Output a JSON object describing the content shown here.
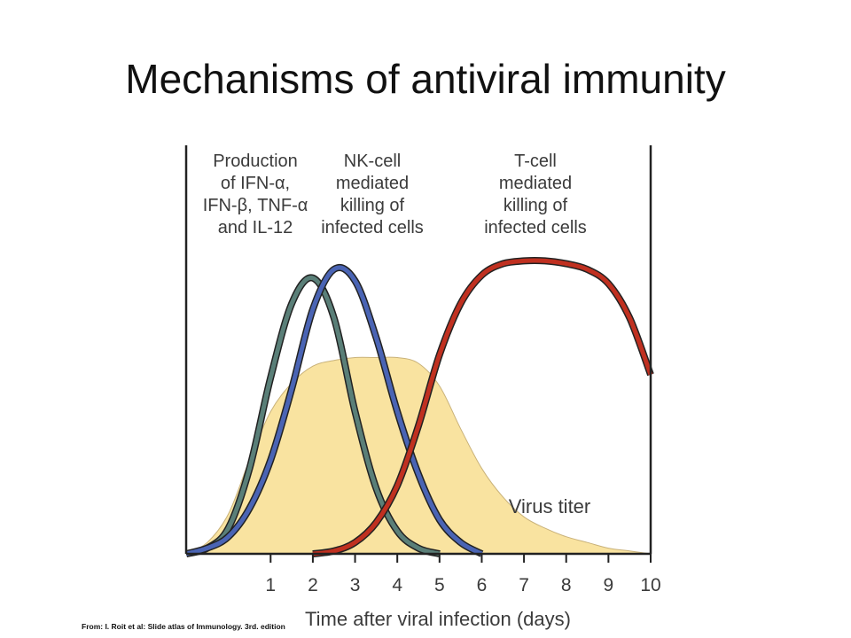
{
  "title": "Mechanisms of antiviral immunity",
  "source_note": "From: I. Roit et al: Slide atlas of Immunology. 3rd. edition",
  "chart_data": {
    "type": "area",
    "xlabel": "Time after viral infection (days)",
    "ylabel": "",
    "xlim": [
      -1,
      10
    ],
    "ylim": [
      0,
      1.05
    ],
    "x_ticks": [
      1,
      2,
      3,
      4,
      5,
      6,
      7,
      8,
      9,
      10
    ],
    "grid": false,
    "colors": {
      "virus_fill": "#f9e3a0",
      "virus_edge": "#c9b27a",
      "ifn": "#5a7f78",
      "nk": "#4a64b4",
      "tcell": "#c03020",
      "curve_outline": "#222222",
      "axis": "#222222"
    },
    "annotations": [
      {
        "lines": [
          "Production",
          "of IFN-α,",
          "IFN-β, TNF-α",
          "and IL-12"
        ]
      },
      {
        "lines": [
          "NK-cell",
          "mediated",
          "killing of",
          "infected cells"
        ]
      },
      {
        "lines": [
          "T-cell",
          "mediated",
          "killing of",
          "infected cells"
        ]
      },
      {
        "lines": [
          "Virus titer"
        ]
      }
    ],
    "series": [
      {
        "name": "Virus titer",
        "kind": "area",
        "x": [
          -1,
          -0.5,
          0,
          0.5,
          1,
          1.5,
          2,
          2.5,
          3,
          3.5,
          4,
          4.5,
          5,
          5.5,
          6,
          6.5,
          7,
          7.5,
          8,
          8.5,
          9,
          9.5,
          10
        ],
        "y": [
          0,
          0.04,
          0.14,
          0.33,
          0.5,
          0.6,
          0.66,
          0.68,
          0.69,
          0.69,
          0.69,
          0.67,
          0.59,
          0.44,
          0.3,
          0.2,
          0.13,
          0.09,
          0.06,
          0.04,
          0.02,
          0.01,
          0
        ]
      },
      {
        "name": "Production of IFN-α, IFN-β, TNF-α and IL-12",
        "kind": "line",
        "x": [
          -1,
          -0.5,
          0,
          0.5,
          1,
          1.5,
          2,
          2.5,
          3,
          3.5,
          4,
          4.5,
          5
        ],
        "y": [
          0,
          0.02,
          0.09,
          0.3,
          0.62,
          0.88,
          0.97,
          0.83,
          0.5,
          0.23,
          0.08,
          0.02,
          0
        ]
      },
      {
        "name": "NK-cell mediated killing of infected cells",
        "kind": "line",
        "x": [
          -1,
          -0.5,
          0,
          0.5,
          1,
          1.5,
          2,
          2.5,
          3,
          3.5,
          4,
          4.5,
          5,
          5.5,
          6
        ],
        "y": [
          0,
          0.02,
          0.06,
          0.16,
          0.33,
          0.58,
          0.86,
          1.0,
          0.96,
          0.76,
          0.5,
          0.28,
          0.12,
          0.04,
          0
        ]
      },
      {
        "name": "T-cell mediated killing of infected cells",
        "kind": "line",
        "x": [
          2,
          2.5,
          3,
          3.5,
          4,
          4.5,
          5,
          5.5,
          6,
          6.5,
          7,
          7.5,
          8,
          8.5,
          9,
          9.5,
          10
        ],
        "y": [
          0,
          0.01,
          0.04,
          0.11,
          0.24,
          0.45,
          0.7,
          0.88,
          0.98,
          1.02,
          1.03,
          1.03,
          1.02,
          1.0,
          0.95,
          0.83,
          0.63
        ]
      }
    ]
  }
}
